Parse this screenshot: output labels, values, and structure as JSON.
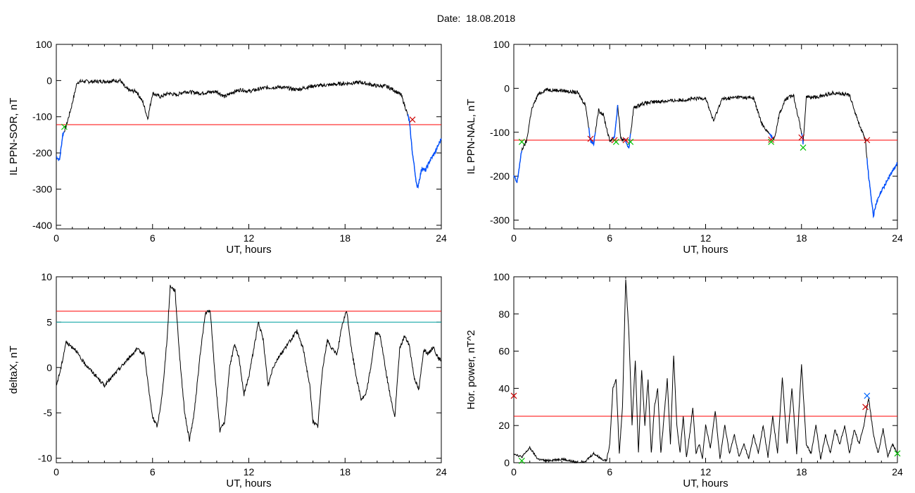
{
  "header": {
    "date_label": "Date:",
    "date_value": "18.08.2018"
  },
  "colors": {
    "trace": "#000000",
    "threshold": "#ff0000",
    "secondary_threshold": "#00a0a0",
    "highlight_trace": "#0050ff",
    "marker_green": "#00c000",
    "marker_red": "#cc0000",
    "marker_blue": "#0066ff"
  },
  "chart_data": [
    {
      "type": "line",
      "ylabel": "IL PPN-SOR, nT",
      "xlabel": "UT, hours",
      "xlim": [
        0,
        24
      ],
      "ylim": [
        -410,
        100
      ],
      "xticks": [
        0,
        6,
        12,
        18,
        24
      ],
      "yticks": [
        -400,
        -300,
        -200,
        -100,
        0,
        100
      ],
      "threshold": -122,
      "series": [
        {
          "x": [
            0,
            0.2,
            0.4,
            0.6,
            0.9,
            1.3,
            1.6,
            2.2,
            3,
            4,
            4.3,
            4.6,
            5,
            5.4,
            5.7,
            6,
            6.5,
            7,
            7.5,
            8,
            9,
            10,
            10.5,
            11,
            11.5,
            12,
            13,
            14,
            15,
            16,
            17,
            18,
            19,
            20,
            20.5,
            21,
            21.5,
            21.8,
            22,
            22.2,
            22.5,
            22.8,
            23,
            23.3,
            23.6,
            24
          ],
          "y": [
            -210,
            -220,
            -150,
            -128,
            -80,
            -5,
            -2,
            -3,
            -2,
            0,
            -20,
            -28,
            -30,
            -60,
            -105,
            -35,
            -45,
            -35,
            -40,
            -30,
            -35,
            -30,
            -45,
            -32,
            -25,
            -30,
            -20,
            -18,
            -25,
            -15,
            -12,
            -8,
            -5,
            -15,
            -15,
            -25,
            -40,
            -80,
            -110,
            -200,
            -300,
            -240,
            -250,
            -220,
            -200,
            -160
          ]
        }
      ],
      "blue_segments": [
        [
          0,
          0.5
        ],
        [
          21.9,
          24
        ]
      ],
      "markers": [
        {
          "x": 0.5,
          "y": -128,
          "color": "green"
        },
        {
          "x": 22.2,
          "y": -108,
          "color": "red"
        }
      ]
    },
    {
      "type": "line",
      "ylabel": "IL PPN-NAL, nT",
      "xlabel": "UT, hours",
      "xlim": [
        0,
        24
      ],
      "ylim": [
        -320,
        100
      ],
      "xticks": [
        0,
        6,
        12,
        18,
        24
      ],
      "yticks": [
        -300,
        -200,
        -100,
        0,
        100
      ],
      "threshold": -118,
      "series": [
        {
          "x": [
            0,
            0.2,
            0.5,
            0.8,
            1.1,
            1.5,
            2,
            3,
            4,
            4.5,
            4.8,
            5,
            5.3,
            5.6,
            6,
            6.3,
            6.5,
            6.7,
            7,
            7.2,
            7.5,
            8,
            9,
            10,
            11,
            12,
            12.5,
            13,
            14,
            15,
            15.5,
            16,
            16.3,
            16.6,
            17,
            17.5,
            18,
            18.1,
            18.3,
            19,
            20,
            21,
            21.5,
            22,
            22.2,
            22.5,
            22.7,
            23,
            23.5,
            24
          ],
          "y": [
            -200,
            -215,
            -140,
            -120,
            -50,
            -15,
            -3,
            -5,
            -10,
            -40,
            -120,
            -125,
            -50,
            -60,
            -120,
            -110,
            -40,
            -115,
            -120,
            -135,
            -45,
            -35,
            -30,
            -28,
            -25,
            -22,
            -75,
            -25,
            -20,
            -22,
            -80,
            -105,
            -115,
            -60,
            -25,
            -15,
            -100,
            -125,
            -20,
            -20,
            -10,
            -15,
            -70,
            -120,
            -200,
            -290,
            -260,
            -235,
            -200,
            -170
          ]
        }
      ],
      "blue_segments": [
        [
          0,
          0.5
        ],
        [
          4.7,
          5.1
        ],
        [
          6.2,
          6.5
        ],
        [
          6.9,
          7.3
        ],
        [
          16.0,
          16.2
        ],
        [
          18.0,
          18.1
        ],
        [
          22.1,
          24
        ]
      ],
      "markers": [
        {
          "x": 0.5,
          "y": -122,
          "color": "green"
        },
        {
          "x": 4.8,
          "y": -115,
          "color": "red"
        },
        {
          "x": 6.3,
          "y": -118,
          "color": "red"
        },
        {
          "x": 6.4,
          "y": -122,
          "color": "green"
        },
        {
          "x": 7.0,
          "y": -118,
          "color": "red"
        },
        {
          "x": 7.3,
          "y": -122,
          "color": "green"
        },
        {
          "x": 16.1,
          "y": -117,
          "color": "red"
        },
        {
          "x": 16.1,
          "y": -122,
          "color": "green"
        },
        {
          "x": 18.0,
          "y": -112,
          "color": "red"
        },
        {
          "x": 18.1,
          "y": -135,
          "color": "green"
        },
        {
          "x": 22.1,
          "y": -118,
          "color": "red"
        }
      ]
    },
    {
      "type": "line",
      "ylabel": "deltaX, nT",
      "xlabel": "UT, hours",
      "xlim": [
        0,
        24
      ],
      "ylim": [
        -10.5,
        10
      ],
      "xticks": [
        0,
        6,
        12,
        18,
        24
      ],
      "yticks": [
        -10,
        -5,
        0,
        5,
        10
      ],
      "threshold": 6.2,
      "threshold2": 5.0,
      "series": [
        {
          "x": [
            0,
            0.3,
            0.6,
            0.8,
            1.2,
            1.5,
            2,
            2.5,
            3,
            3.5,
            4,
            4.5,
            5,
            5.5,
            5.8,
            6,
            6.3,
            6.6,
            6.9,
            7.1,
            7.4,
            7.7,
            8,
            8.3,
            8.6,
            9,
            9.3,
            9.6,
            9.9,
            10.2,
            10.5,
            10.8,
            11.1,
            11.4,
            11.7,
            12,
            12.3,
            12.6,
            12.9,
            13.2,
            13.5,
            13.8,
            14.2,
            14.6,
            15,
            15.4,
            15.8,
            16,
            16.3,
            16.6,
            16.9,
            17.2,
            17.5,
            17.8,
            18.1,
            18.4,
            18.7,
            19,
            19.3,
            19.6,
            19.9,
            20.2,
            20.5,
            20.8,
            21.1,
            21.4,
            21.7,
            22,
            22.3,
            22.6,
            22.9,
            23.2,
            23.5,
            23.8,
            24
          ],
          "y": [
            -2,
            0,
            2.8,
            2.5,
            2,
            1,
            0,
            -1,
            -2,
            -1,
            0,
            1,
            2,
            1.5,
            -3,
            -5.5,
            -6.5,
            -3,
            3,
            9,
            8.5,
            1,
            -5,
            -8,
            -5,
            2,
            6,
            6.2,
            -1,
            -7,
            -6,
            0,
            2.5,
            1,
            -3,
            -1,
            2,
            5,
            3,
            -2,
            0,
            1,
            2,
            3,
            4,
            2,
            -2,
            -6,
            -6.5,
            0,
            3,
            2,
            1.5,
            4.5,
            6.3,
            2,
            -1,
            -3.5,
            -3,
            0,
            3.8,
            3.5,
            0,
            -3,
            -5.5,
            2,
            3.5,
            2.5,
            -1,
            -2.5,
            2,
            1.5,
            2.3,
            1,
            0.8
          ]
        }
      ],
      "markers": []
    },
    {
      "type": "line",
      "ylabel": "Hor. power, nT^2",
      "xlabel": "UT, hours",
      "xlim": [
        0,
        24
      ],
      "ylim": [
        0,
        100
      ],
      "xticks": [
        0,
        6,
        12,
        18,
        24
      ],
      "yticks": [
        0,
        20,
        40,
        60,
        80,
        100
      ],
      "threshold": 25,
      "series": [
        {
          "x": [
            0,
            0.5,
            1,
            1.5,
            2,
            3,
            4,
            4.5,
            5,
            5.5,
            5.8,
            6,
            6.2,
            6.4,
            6.6,
            6.8,
            7,
            7.2,
            7.4,
            7.6,
            7.8,
            8,
            8.2,
            8.4,
            8.6,
            8.8,
            9,
            9.2,
            9.4,
            9.6,
            9.8,
            10,
            10.2,
            10.4,
            10.6,
            10.8,
            11,
            11.2,
            11.4,
            11.6,
            11.8,
            12,
            12.3,
            12.6,
            12.9,
            13.2,
            13.5,
            13.8,
            14.1,
            14.4,
            14.7,
            15,
            15.3,
            15.6,
            15.9,
            16.2,
            16.5,
            16.8,
            17.1,
            17.4,
            17.7,
            18,
            18.3,
            18.6,
            18.9,
            19.2,
            19.5,
            19.8,
            20.1,
            20.4,
            20.7,
            21,
            21.3,
            21.6,
            21.9,
            22.2,
            22.5,
            22.8,
            23.1,
            23.4,
            23.7,
            24
          ],
          "y": [
            5,
            3,
            8,
            2,
            1,
            2,
            0,
            1,
            5,
            2,
            1,
            10,
            40,
            45,
            5,
            30,
            99,
            70,
            20,
            55,
            5,
            50,
            20,
            45,
            5,
            30,
            40,
            5,
            25,
            45,
            10,
            58,
            20,
            5,
            25,
            3,
            15,
            30,
            5,
            10,
            2,
            20,
            8,
            28,
            2,
            20,
            5,
            15,
            3,
            10,
            2,
            15,
            5,
            20,
            3,
            25,
            5,
            46,
            10,
            40,
            5,
            53,
            10,
            5,
            20,
            2,
            15,
            5,
            18,
            10,
            20,
            5,
            18,
            10,
            20,
            35,
            15,
            5,
            18,
            3,
            10,
            5
          ]
        }
      ],
      "markers": [
        {
          "x": 0,
          "y": 36,
          "color": "red"
        },
        {
          "x": 0.5,
          "y": 1,
          "color": "green"
        },
        {
          "x": 22.1,
          "y": 36,
          "color": "blue"
        },
        {
          "x": 22.0,
          "y": 30,
          "color": "red"
        },
        {
          "x": 24,
          "y": 5,
          "color": "green"
        }
      ]
    }
  ]
}
